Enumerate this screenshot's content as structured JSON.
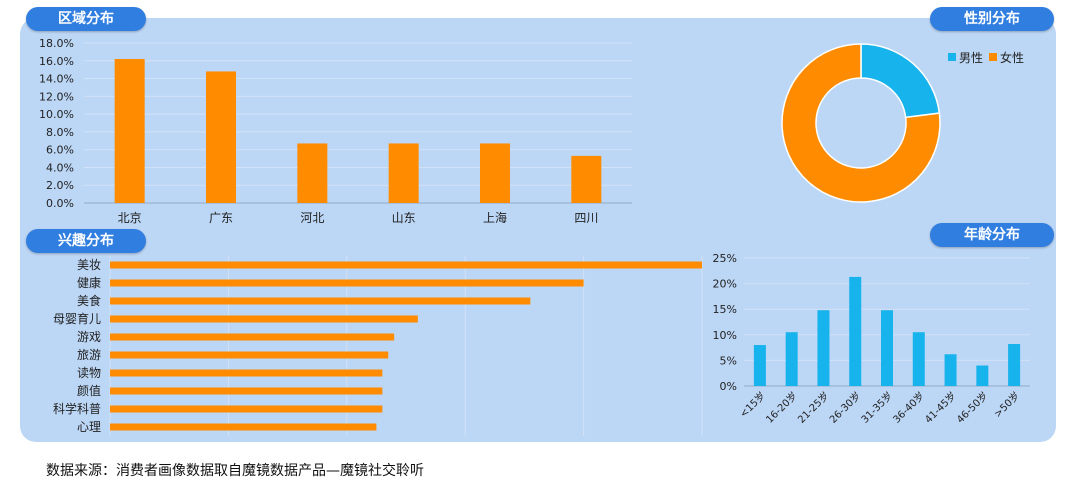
{
  "source_note": "数据来源：消费者画像数据取自魔镜数据产品—魔镜社交聆听",
  "colors": {
    "orange": "#ff8c00",
    "cyan": "#17b3ec",
    "panel": "#bcd6f5",
    "tag": "#2f7ee0"
  },
  "chart_data": [
    {
      "type": "bar",
      "title": "区域分布",
      "categories": [
        "北京",
        "广东",
        "河北",
        "山东",
        "上海",
        "四川"
      ],
      "values": [
        16.2,
        14.8,
        6.7,
        6.7,
        6.7,
        5.3
      ],
      "yticks": [
        "0.0%",
        "2.0%",
        "4.0%",
        "6.0%",
        "8.0%",
        "10.0%",
        "12.0%",
        "14.0%",
        "16.0%",
        "18.0%"
      ],
      "ylim": [
        0,
        18
      ],
      "unit": "%",
      "grid": true
    },
    {
      "type": "pie",
      "title": "性别分布",
      "legend_position": "top-right",
      "categories": [
        "男性",
        "女性"
      ],
      "values": [
        23,
        77
      ]
    },
    {
      "type": "bar",
      "orientation": "horizontal",
      "title": "兴趣分布",
      "categories": [
        "美妆",
        "健康",
        "美食",
        "母婴育儿",
        "游戏",
        "旅游",
        "读物",
        "颜值",
        "科学科普",
        "心理"
      ],
      "values": [
        100,
        80,
        71,
        52,
        48,
        47,
        46,
        46,
        46,
        45
      ],
      "xlim": [
        0,
        100
      ],
      "grid": true
    },
    {
      "type": "bar",
      "title": "年龄分布",
      "categories": [
        "<15岁",
        "16-20岁",
        "21-25岁",
        "26-30岁",
        "31-35岁",
        "36-40岁",
        "41-45岁",
        "46-50岁",
        ">50岁"
      ],
      "values": [
        8,
        10.5,
        14.8,
        21.3,
        14.8,
        10.5,
        6.2,
        4,
        8.2
      ],
      "yticks": [
        "0%",
        "5%",
        "10%",
        "15%",
        "20%",
        "25%"
      ],
      "ylim": [
        0,
        25
      ],
      "unit": "%",
      "grid": true
    }
  ]
}
